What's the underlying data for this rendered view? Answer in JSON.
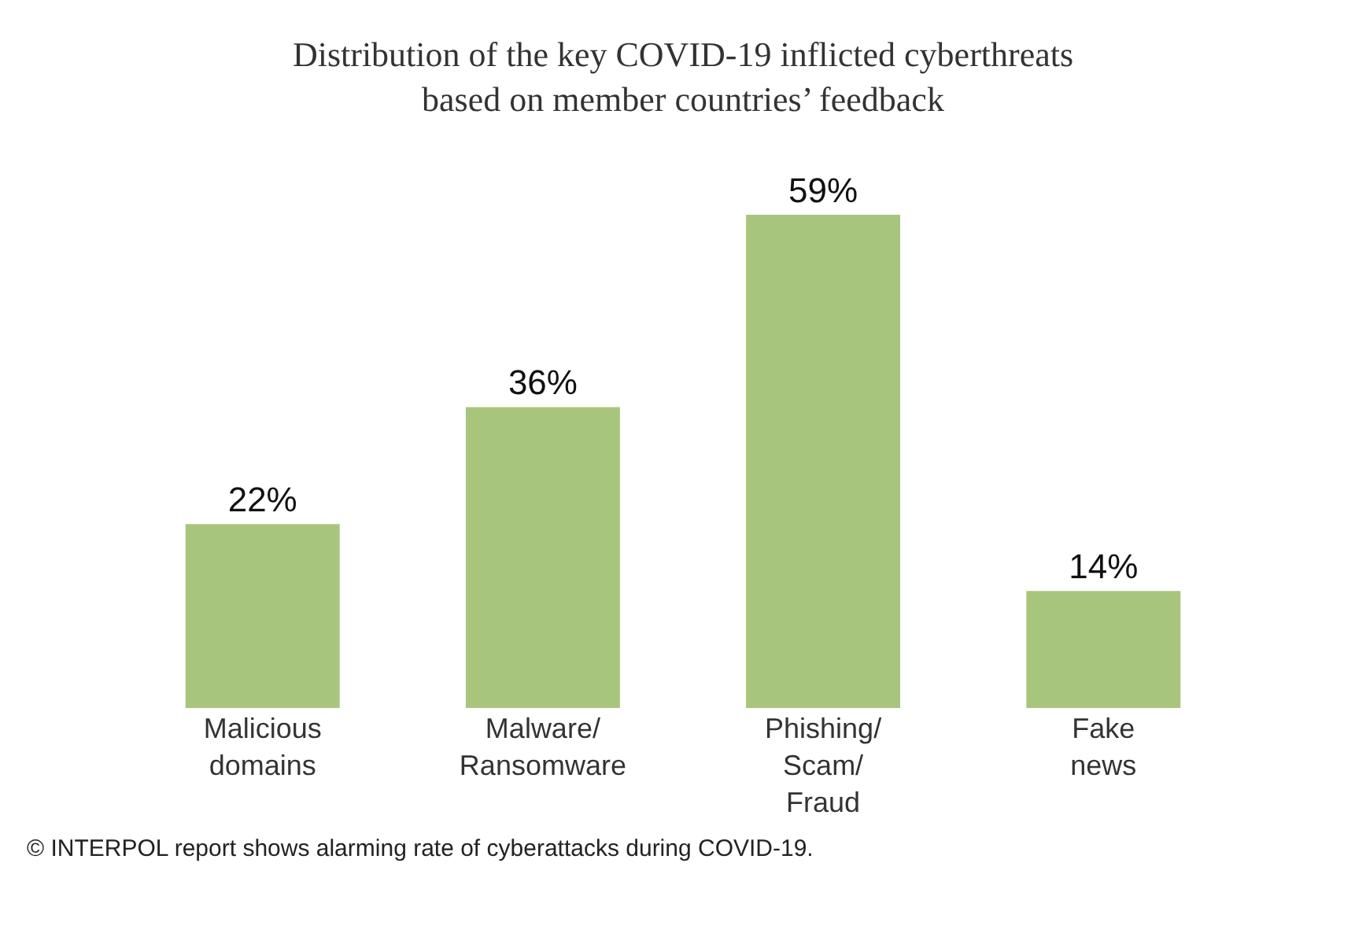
{
  "chart_data": {
    "type": "bar",
    "title": "Distribution of the key COVID-19 inflicted cyberthreats\nbased on member countries’ feedback",
    "categories": [
      "Malicious\ndomains",
      "Malware/\nRansomware",
      "Phishing/\nScam/\nFraud",
      "Fake\nnews"
    ],
    "values": [
      22,
      36,
      59,
      14
    ],
    "value_labels": [
      "22%",
      "36%",
      "59%",
      "14%"
    ],
    "color": "#a8c57c",
    "annotations": [
      "© INTERPOL report shows alarming rate of cyberattacks during COVID-19."
    ]
  }
}
